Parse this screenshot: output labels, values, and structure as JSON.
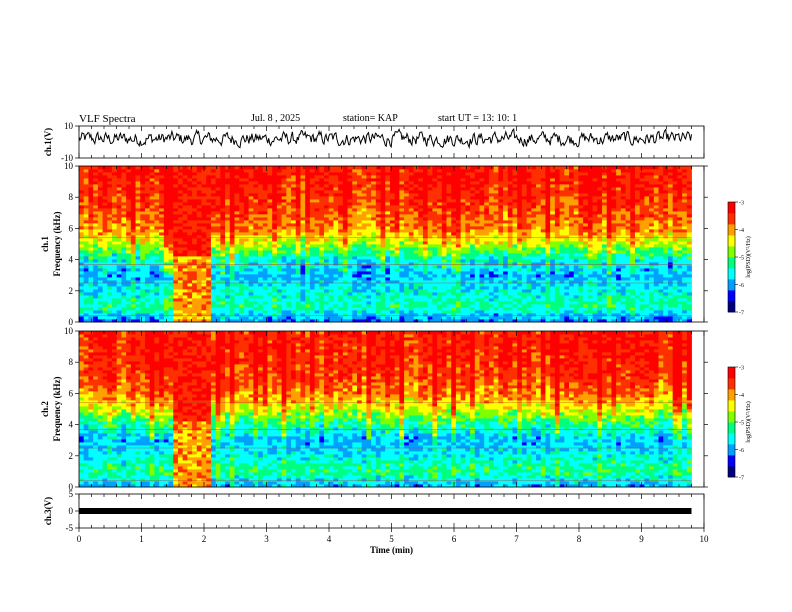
{
  "header": {
    "title": "VLF Spectra",
    "date": "Jul. 8 , 2025",
    "station": "station= KAP",
    "start_ut": "start UT =  13: 10: 1"
  },
  "colors": {
    "ch1_trace": "#000000",
    "ch3_trace": "#000000",
    "colormap": [
      "#000080",
      "#0000ff",
      "#00a0ff",
      "#00ffff",
      "#00ff80",
      "#80ff00",
      "#ffff00",
      "#ffa000",
      "#ff3000",
      "#ff0000"
    ]
  },
  "chart_data": [
    {
      "type": "line",
      "id": "ch1",
      "ylabel": "ch.1(V)",
      "ylim": [
        -10,
        10
      ],
      "yticks": [
        "10",
        "-10"
      ],
      "xlim": [
        0,
        10
      ],
      "series": [
        {
          "x": [
            0,
            1,
            2,
            3,
            4,
            5,
            6,
            7,
            8,
            9,
            9.8
          ],
          "values": [
            1,
            3,
            1,
            2,
            3,
            1,
            2,
            3,
            1,
            2,
            4
          ]
        }
      ],
      "note_values": "noisy trace fluctuating around about +2 V"
    },
    {
      "type": "heatmap",
      "id": "ch1spec",
      "ylabel": "ch.1\nFrequency  (kHz)",
      "ylim": [
        0,
        10
      ],
      "yticks": [
        "0",
        "2",
        "4",
        "6",
        "8",
        "10"
      ],
      "xlim": [
        0,
        9.8
      ],
      "colorbar": {
        "label": "log(PSD)(V²/Hz)",
        "range": [
          -7,
          -3
        ],
        "ticks": [
          "-3",
          "-4",
          "-5",
          "-6",
          "-7"
        ]
      },
      "levels_by_freq": [
        [
          0,
          -6.2
        ],
        [
          1,
          -5.3
        ],
        [
          2,
          -5.6
        ],
        [
          3,
          -5.9
        ],
        [
          4,
          -5.5
        ],
        [
          5,
          -4.6
        ],
        [
          6,
          -3.9
        ],
        [
          7,
          -3.7
        ],
        [
          8,
          -3.5
        ],
        [
          9,
          -3.4
        ],
        [
          10,
          -3.4
        ]
      ],
      "anomaly_window_min": [
        1.5,
        2.1
      ]
    },
    {
      "type": "heatmap",
      "id": "ch2spec",
      "ylabel": "ch.2\nFrequency  (kHz)",
      "ylim": [
        0,
        10
      ],
      "yticks": [
        "0",
        "2",
        "4",
        "6",
        "8",
        "10"
      ],
      "xlim": [
        0,
        9.8
      ],
      "colorbar": {
        "label": "log(PSD)(V²/Hz)",
        "range": [
          -7,
          -3
        ],
        "ticks": [
          "-3",
          "-4",
          "-5",
          "-6",
          "-7"
        ]
      },
      "levels_by_freq": [
        [
          0,
          -6.0
        ],
        [
          1,
          -5.2
        ],
        [
          2,
          -5.6
        ],
        [
          3,
          -5.9
        ],
        [
          4,
          -5.3
        ],
        [
          5,
          -4.5
        ],
        [
          6,
          -3.9
        ],
        [
          7,
          -3.6
        ],
        [
          8,
          -3.5
        ],
        [
          9,
          -3.4
        ],
        [
          10,
          -3.4
        ]
      ],
      "anomaly_window_min": [
        1.5,
        2.1
      ]
    },
    {
      "type": "line",
      "id": "ch3",
      "ylabel": "ch.3(V)",
      "ylim": [
        -5,
        5
      ],
      "yticks": [
        "5",
        "0",
        "-5"
      ],
      "xlim": [
        0,
        10
      ],
      "series": [
        {
          "x": [
            0,
            9.8
          ],
          "values": [
            0,
            0
          ]
        }
      ]
    }
  ],
  "xaxis": {
    "label": "Time  (min)",
    "ticks": [
      "0",
      "1",
      "2",
      "3",
      "4",
      "5",
      "6",
      "7",
      "8",
      "9",
      "10"
    ]
  }
}
